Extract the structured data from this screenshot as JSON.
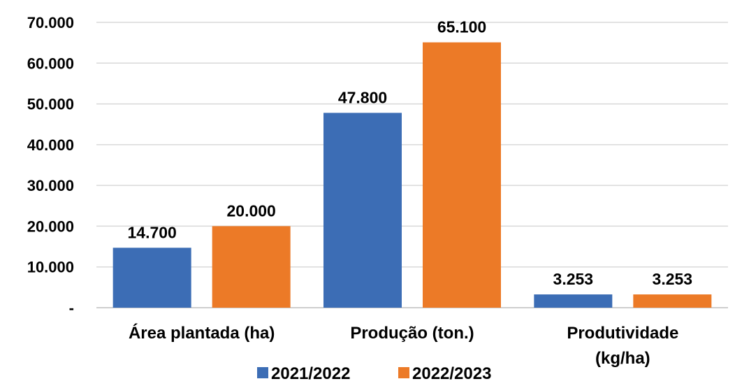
{
  "chart_data": {
    "type": "bar",
    "title": "",
    "xlabel": "",
    "ylabel": "",
    "ylim": [
      0,
      70000
    ],
    "y_ticks": [
      0,
      10000,
      20000,
      30000,
      40000,
      50000,
      60000,
      70000
    ],
    "y_tick_labels": [
      "-",
      "10.000",
      "20.000",
      "30.000",
      "40.000",
      "50.000",
      "60.000",
      "70.000"
    ],
    "categories": [
      [
        "Área plantada (ha)"
      ],
      [
        "Produção (ton.)"
      ],
      [
        "Produtividade",
        "(kg/ha)"
      ]
    ],
    "series": [
      {
        "name": "2021/2022",
        "color": "#3c6db5",
        "values": [
          14700,
          47800,
          3253
        ],
        "labels": [
          "14.700",
          "47.800",
          "3.253"
        ]
      },
      {
        "name": "2022/2023",
        "color": "#ec7a27",
        "values": [
          20000,
          65100,
          3253
        ],
        "labels": [
          "20.000",
          "65.100",
          "3.253"
        ]
      }
    ],
    "grid": true,
    "legend": "bottom"
  }
}
